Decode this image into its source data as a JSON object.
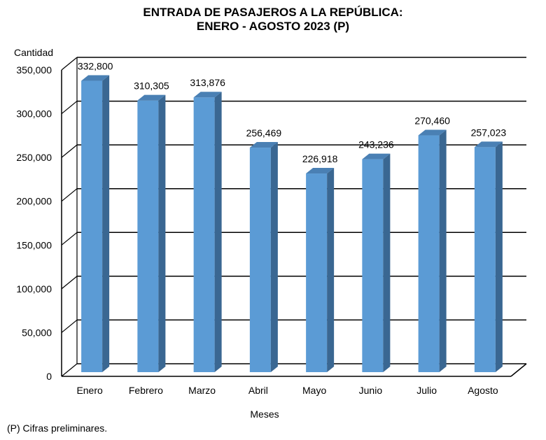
{
  "chart_data": {
    "type": "bar",
    "title": "ENTRADA DE PASAJEROS A LA REPÚBLICA:",
    "subtitle": "ENERO - AGOSTO 2023 (P)",
    "xlabel": "Meses",
    "ylabel": "Cantidad",
    "categories": [
      "Enero",
      "Febrero",
      "Marzo",
      "Abril",
      "Mayo",
      "Junio",
      "Julio",
      "Agosto"
    ],
    "values": [
      332800,
      310305,
      313876,
      256469,
      226918,
      243236,
      270460,
      257023
    ],
    "data_labels": [
      "332,800",
      "310,305",
      "313,876",
      "256,469",
      "226,918",
      "243,236",
      "270,460",
      "257,023"
    ],
    "ylim": [
      0,
      350000
    ],
    "yticks": [
      "0",
      "50,000",
      "100,000",
      "150,000",
      "200,000",
      "250,000",
      "300,000",
      "350,000"
    ],
    "grid": true,
    "style": "3d-column",
    "colors": {
      "front": "#5b9bd5",
      "side": "#3a6792",
      "top": "#4a80b4"
    },
    "footnote": "(P) Cifras  preliminares."
  }
}
